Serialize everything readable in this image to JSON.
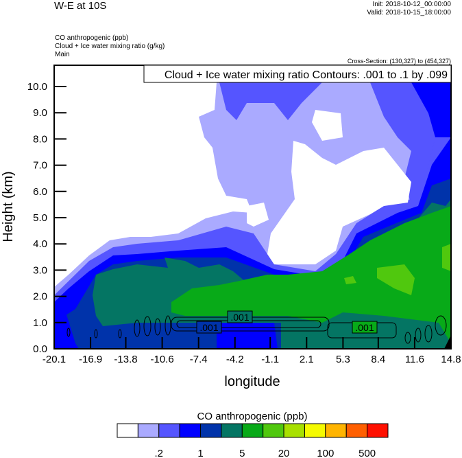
{
  "header": {
    "title": "W-E at 10S",
    "init": "Init: 2018-10-12_00:00:00",
    "valid": "Valid: 2018-10-15_18:00:00",
    "fields": [
      "CO anthropogenic   (ppb)",
      "Cloud + Ice water mixing ratio   (g/kg)",
      "Main"
    ],
    "cross_section": "Cross-Section: (130,327) to (454,327)"
  },
  "chart_data": {
    "type": "heatmap",
    "subtype": "filled contour cross-section with line contour overlay",
    "xlabel": "longitude",
    "ylabel": "Height (km)",
    "xlim": [
      -20.1,
      14.8
    ],
    "ylim": [
      0.0,
      10.8
    ],
    "x_ticks": [
      "-20.1",
      "-16.9",
      "-13.8",
      "-10.6",
      "-7.4",
      "-4.2",
      "-1.1",
      "2.1",
      "5.3",
      "8.4",
      "11.6",
      "14.8"
    ],
    "y_ticks": [
      "0.0",
      "1.0",
      "2.0",
      "3.0",
      "4.0",
      "5.0",
      "6.0",
      "7.0",
      "8.0",
      "9.0",
      "10.0"
    ],
    "contour_info": "Cloud + Ice water mixing ratio Contours: .001 to .1 by .099",
    "contour_labels": [
      ".001",
      ".001",
      ".001"
    ],
    "colorbar": {
      "title": "CO anthropogenic  (ppb)",
      "colors": [
        "#ffffff",
        "#aaaaff",
        "#5555ff",
        "#0000ff",
        "#0033aa",
        "#047563",
        "#08aa18",
        "#50c80e",
        "#a8e000",
        "#f5fa00",
        "#ffb400",
        "#ff5f00",
        "#ff1000"
      ],
      "labels": [
        ".2",
        "1",
        "5",
        "20",
        "100",
        "500"
      ]
    },
    "grid": false
  }
}
